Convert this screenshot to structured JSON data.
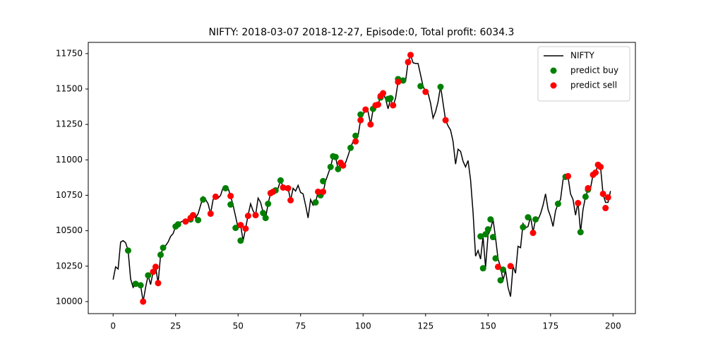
{
  "chart_data": {
    "type": "line",
    "title": "NIFTY: 2018-03-07 2018-12-27,  Episode:0, Total profit: 6034.3",
    "legend": "upper right",
    "xlim": [
      -9.95,
      208.95
    ],
    "ylim": [
      9915,
      11829
    ],
    "xticks": [
      0,
      25,
      50,
      75,
      100,
      125,
      150,
      175,
      200
    ],
    "yticks": [
      10000,
      10250,
      10500,
      10750,
      11000,
      11250,
      11500,
      11750
    ],
    "series": [
      {
        "name": "NIFTY",
        "type": "line",
        "color": "#000000",
        "x": [
          0,
          1,
          2,
          3,
          4,
          5,
          6,
          7,
          8,
          9,
          10,
          11,
          12,
          13,
          14,
          15,
          16,
          17,
          18,
          19,
          20,
          21,
          22,
          23,
          24,
          25,
          26,
          27,
          28,
          29,
          30,
          31,
          32,
          33,
          34,
          35,
          36,
          37,
          38,
          39,
          40,
          41,
          42,
          43,
          44,
          45,
          46,
          47,
          48,
          49,
          50,
          51,
          52,
          53,
          54,
          55,
          56,
          57,
          58,
          59,
          60,
          61,
          62,
          63,
          64,
          65,
          66,
          67,
          68,
          69,
          70,
          71,
          72,
          73,
          74,
          75,
          76,
          77,
          78,
          79,
          80,
          81,
          82,
          83,
          84,
          85,
          86,
          87,
          88,
          89,
          90,
          91,
          92,
          93,
          94,
          95,
          96,
          97,
          98,
          99,
          100,
          101,
          102,
          103,
          104,
          105,
          106,
          107,
          108,
          109,
          110,
          111,
          112,
          113,
          114,
          115,
          116,
          117,
          118,
          119,
          120,
          121,
          122,
          123,
          124,
          125,
          126,
          127,
          128,
          129,
          130,
          131,
          132,
          133,
          134,
          135,
          136,
          137,
          138,
          139,
          140,
          141,
          142,
          143,
          144,
          145,
          146,
          147,
          148,
          149,
          150,
          151,
          152,
          153,
          154,
          155,
          156,
          157,
          158,
          159,
          160,
          161,
          162,
          163,
          164,
          165,
          166,
          167,
          168,
          169,
          170,
          171,
          172,
          173,
          174,
          175,
          176,
          177,
          178,
          179,
          180,
          181,
          182,
          183,
          184,
          185,
          186,
          187,
          188,
          189,
          190,
          191,
          192,
          193,
          194,
          195,
          196,
          197,
          198,
          199
        ],
        "values": [
          10155,
          10245,
          10230,
          10420,
          10430,
          10415,
          10360,
          10160,
          10100,
          10125,
          10130,
          10115,
          10000,
          10100,
          10185,
          10120,
          10210,
          10245,
          10130,
          10330,
          10380,
          10395,
          10420,
          10460,
          10480,
          10530,
          10545,
          10560,
          10570,
          10565,
          10580,
          10590,
          10610,
          10590,
          10620,
          10680,
          10740,
          10720,
          10690,
          10620,
          10720,
          10740,
          10730,
          10750,
          10805,
          10810,
          10800,
          10745,
          10680,
          10600,
          10520,
          10540,
          10430,
          10515,
          10610,
          10690,
          10640,
          10610,
          10730,
          10700,
          10630,
          10590,
          10690,
          10765,
          10770,
          10780,
          10800,
          10855,
          10810,
          10790,
          10800,
          10715,
          10800,
          10780,
          10820,
          10770,
          10760,
          10680,
          10590,
          10720,
          10680,
          10700,
          10775,
          10750,
          10770,
          10850,
          10900,
          10950,
          11025,
          11020,
          10935,
          10985,
          10960,
          10980,
          11030,
          11085,
          11130,
          11130,
          11170,
          11280,
          11320,
          11355,
          11340,
          11250,
          11355,
          11390,
          11385,
          11450,
          11470,
          11430,
          11360,
          11430,
          11380,
          11435,
          11550,
          11575,
          11570,
          11555,
          11690,
          11740,
          11685,
          11680,
          11680,
          11600,
          11520,
          11480,
          11470,
          11400,
          11295,
          11340,
          11410,
          11520,
          11400,
          11280,
          11240,
          11210,
          11130,
          10970,
          11075,
          11060,
          10990,
          10950,
          10995,
          10860,
          10630,
          10320,
          10360,
          10300,
          10460,
          10240,
          10470,
          10510,
          10580,
          10450,
          10300,
          10245,
          10150,
          10220,
          10100,
          10035,
          10250,
          10200,
          10390,
          10380,
          10550,
          10520,
          10530,
          10600,
          10490,
          10580,
          10580,
          10620,
          10680,
          10760,
          10650,
          10600,
          10530,
          10640,
          10690,
          10720,
          10860,
          10880,
          10880,
          10760,
          10720,
          10610,
          10700,
          10490,
          10650,
          10740,
          10790,
          10800,
          10895,
          10910,
          10965,
          10950,
          10760,
          10700,
          10700,
          10780
        ]
      },
      {
        "name": "predict buy",
        "type": "scatter",
        "color": "#008000",
        "x": [
          6,
          9,
          11,
          14,
          19,
          20,
          25,
          26,
          31,
          34,
          36,
          45,
          47,
          49,
          51,
          60,
          61,
          62,
          65,
          67,
          81,
          83,
          84,
          87,
          88,
          89,
          90,
          95,
          97,
          99,
          104,
          107,
          110,
          111,
          114,
          116,
          123,
          131,
          147,
          148,
          149,
          150,
          151,
          152,
          153,
          155,
          156,
          164,
          166,
          169,
          178,
          181,
          187,
          189,
          190
        ],
        "values": [
          10360,
          10125,
          10115,
          10185,
          10330,
          10380,
          10530,
          10545,
          10580,
          10575,
          10720,
          10800,
          10685,
          10520,
          10430,
          10625,
          10590,
          10690,
          10785,
          10855,
          10700,
          10750,
          10850,
          10950,
          11025,
          11020,
          10935,
          11085,
          11170,
          11320,
          11360,
          11440,
          11430,
          11435,
          11570,
          11560,
          11520,
          11515,
          10460,
          10235,
          10475,
          10510,
          10580,
          10455,
          10305,
          10150,
          10225,
          10525,
          10595,
          10580,
          10690,
          10880,
          10490,
          10740,
          10790
        ]
      },
      {
        "name": "predict sell",
        "type": "scatter",
        "color": "#ff0000",
        "x": [
          12,
          16,
          17,
          18,
          29,
          31,
          32,
          39,
          41,
          47,
          51,
          53,
          54,
          57,
          63,
          64,
          68,
          70,
          71,
          82,
          84,
          91,
          92,
          97,
          99,
          101,
          103,
          105,
          106,
          107,
          108,
          112,
          114,
          118,
          119,
          125,
          133,
          154,
          159,
          168,
          182,
          186,
          190,
          192,
          193,
          194,
          195,
          196,
          197,
          198
        ],
        "values": [
          10000,
          10210,
          10245,
          10130,
          10565,
          10590,
          10610,
          10620,
          10740,
          10745,
          10540,
          10515,
          10605,
          10610,
          10765,
          10775,
          10805,
          10800,
          10715,
          10775,
          10775,
          10980,
          10960,
          11130,
          11280,
          11355,
          11250,
          11385,
          11390,
          11450,
          11470,
          11385,
          11550,
          11690,
          11740,
          11480,
          11280,
          10245,
          10250,
          10485,
          10885,
          10695,
          10800,
          10895,
          10910,
          10965,
          10950,
          10760,
          10660,
          10735
        ]
      }
    ]
  }
}
